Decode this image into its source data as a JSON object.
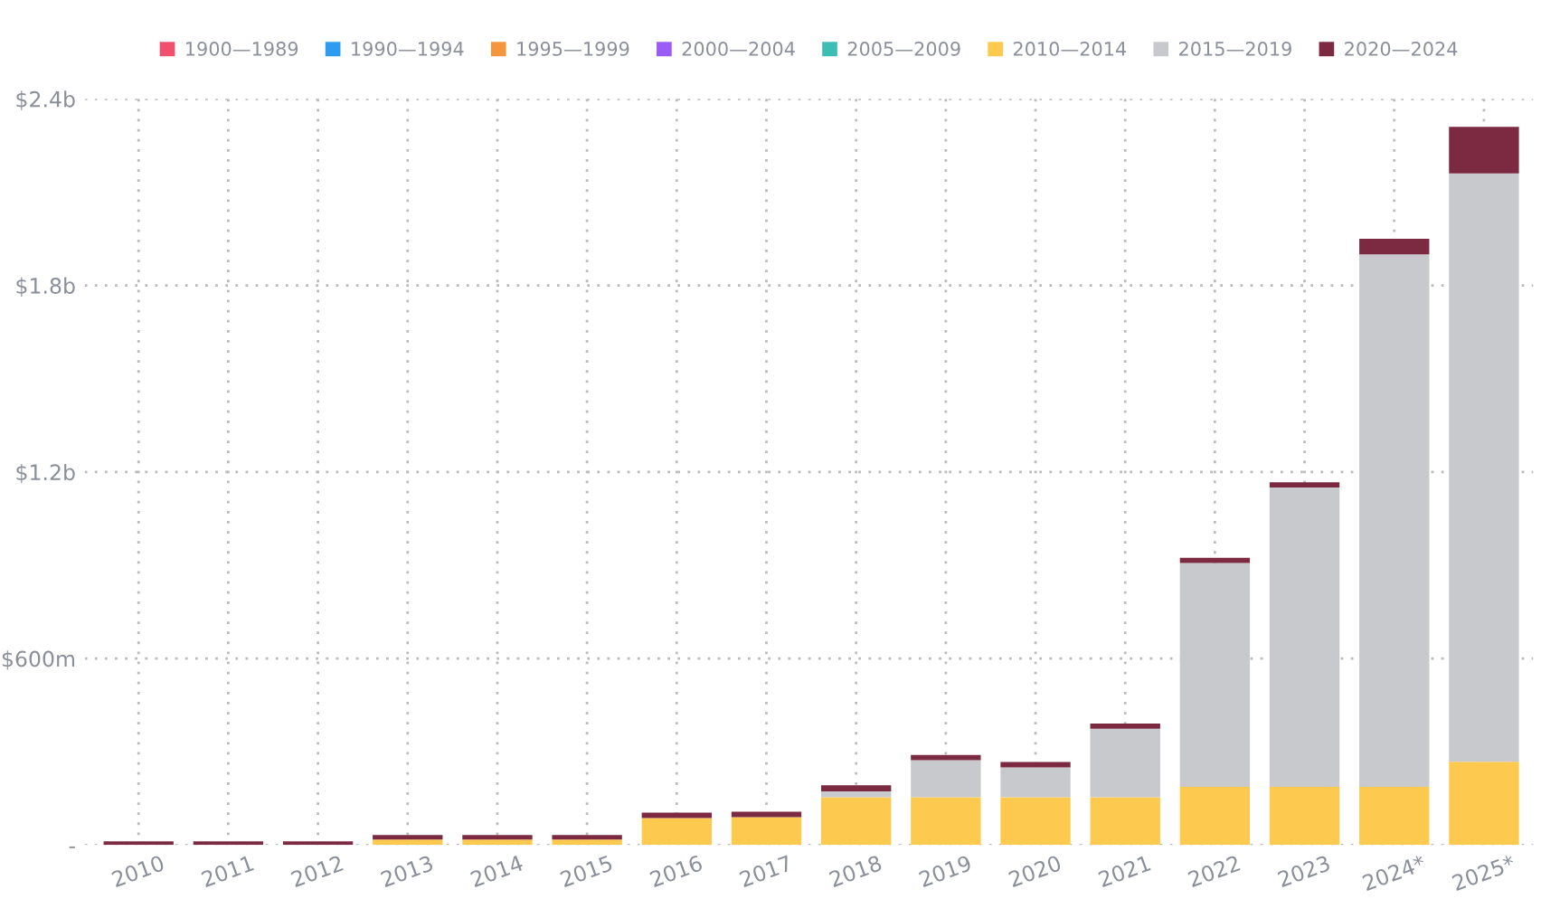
{
  "chart_data": {
    "type": "bar",
    "stacked": true,
    "categories": [
      "2010",
      "2011",
      "2012",
      "2013",
      "2014",
      "2015",
      "2016",
      "2017",
      "2018",
      "2019",
      "2020",
      "2021",
      "2022",
      "2023",
      "2024*",
      "2025*"
    ],
    "series": [
      {
        "name": "1900—1989",
        "color": "#f0506e",
        "values": [
          null,
          null,
          null,
          null,
          null,
          null,
          null,
          null,
          null,
          null,
          null,
          null,
          null,
          null,
          null,
          null
        ]
      },
      {
        "name": "1990—1994",
        "color": "#2d9cf0",
        "values": [
          null,
          null,
          null,
          null,
          null,
          null,
          null,
          null,
          null,
          null,
          null,
          null,
          null,
          null,
          null,
          null
        ]
      },
      {
        "name": "1995—1999",
        "color": "#f5963c",
        "values": [
          null,
          null,
          null,
          null,
          null,
          null,
          null,
          null,
          null,
          null,
          null,
          null,
          null,
          null,
          null,
          null
        ]
      },
      {
        "name": "2000—2004",
        "color": "#9b5cf5",
        "values": [
          null,
          null,
          null,
          null,
          null,
          null,
          null,
          null,
          null,
          null,
          null,
          null,
          null,
          null,
          null,
          null
        ]
      },
      {
        "name": "2005—2009",
        "color": "#3cbeb4",
        "values": [
          null,
          null,
          null,
          null,
          null,
          null,
          null,
          null,
          null,
          null,
          null,
          null,
          null,
          null,
          null,
          null
        ]
      },
      {
        "name": "2010—2014",
        "color": "#fdc94f",
        "values": [
          null,
          null,
          null,
          18000000,
          18000000,
          18000000,
          87000000,
          90000000,
          154000000,
          154000000,
          154000000,
          154000000,
          187000000,
          187000000,
          187000000,
          268000000
        ]
      },
      {
        "name": "2015—2019",
        "color": "#c8c9cc",
        "values": [
          null,
          null,
          null,
          null,
          null,
          null,
          null,
          null,
          19000000,
          119000000,
          96000000,
          220000000,
          720000000,
          963000000,
          1713000000,
          1892000000
        ]
      },
      {
        "name": "2020—2024",
        "color": "#7b2a42",
        "values": [
          12000000,
          12000000,
          12000000,
          14000000,
          14000000,
          14000000,
          17000000,
          17000000,
          19000000,
          17000000,
          17000000,
          17000000,
          17000000,
          17000000,
          50000000,
          150000000
        ]
      }
    ],
    "ylim": [
      0,
      2400000000
    ],
    "yticks": [
      {
        "value": 0,
        "label": "-"
      },
      {
        "value": 600000000,
        "label": "$600m"
      },
      {
        "value": 1200000000,
        "label": "$1.2b"
      },
      {
        "value": 1800000000,
        "label": "$1.8b"
      },
      {
        "value": 2400000000,
        "label": "$2.4b"
      }
    ],
    "grid": true,
    "legend": "top"
  }
}
